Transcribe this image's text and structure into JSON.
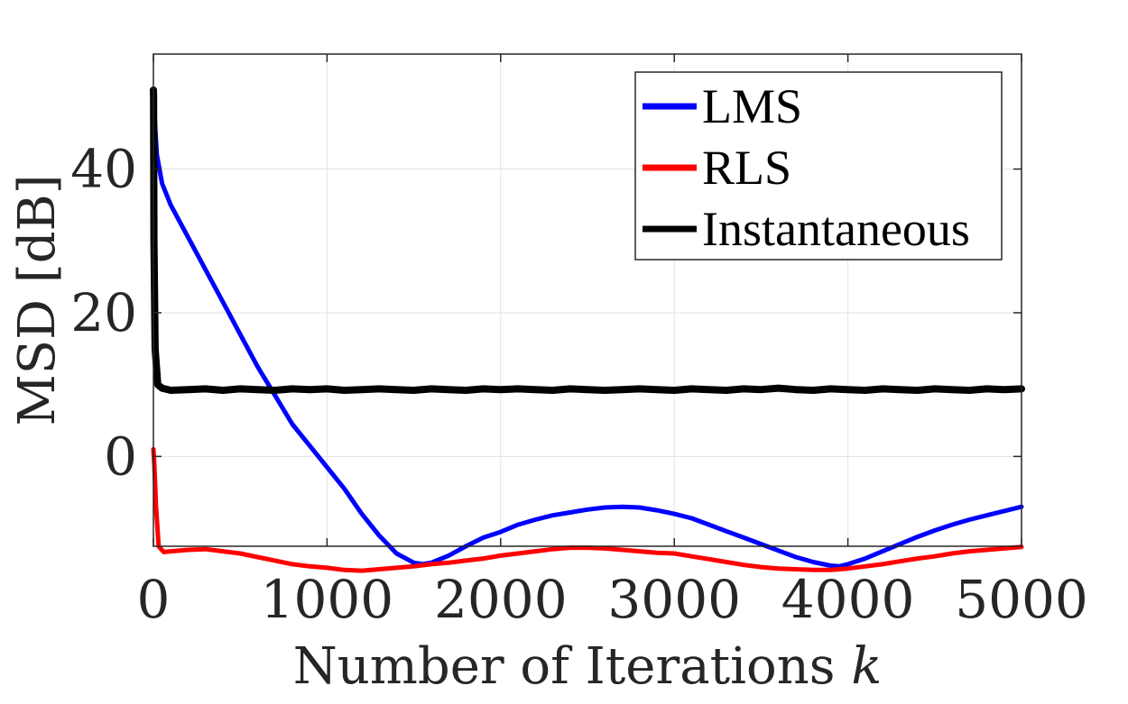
{
  "chart_data": {
    "type": "line",
    "title": "",
    "xlabel": "Number of Iterations",
    "xlabel_var": "k",
    "ylabel": "MSD [dB]",
    "xlim": [
      0,
      5000
    ],
    "ylim": [
      -12.5,
      56
    ],
    "xticks": [
      0,
      1000,
      2000,
      3000,
      4000,
      5000
    ],
    "yticks": [
      0,
      20,
      40
    ],
    "grid": true,
    "legend_position": "top-right",
    "series": [
      {
        "name": "LMS",
        "color": "#0000ff",
        "x": [
          0,
          20,
          50,
          100,
          200,
          300,
          400,
          500,
          600,
          700,
          800,
          900,
          1000,
          1100,
          1200,
          1300,
          1400,
          1500,
          1550,
          1600,
          1700,
          1800,
          1900,
          2000,
          2100,
          2200,
          2300,
          2400,
          2500,
          2600,
          2700,
          2800,
          2900,
          3000,
          3100,
          3200,
          3300,
          3400,
          3500,
          3600,
          3700,
          3800,
          3900,
          3950,
          4000,
          4100,
          4200,
          4300,
          4400,
          4500,
          4600,
          4700,
          4800,
          4900,
          5000
        ],
        "y": [
          50,
          42,
          38,
          35,
          30.5,
          26,
          21.5,
          17,
          12.5,
          8.5,
          4.5,
          1.5,
          -1.5,
          -4.5,
          -8,
          -11,
          -13.5,
          -14.8,
          -15,
          -14.8,
          -13.8,
          -12.5,
          -11.3,
          -10.5,
          -9.5,
          -8.8,
          -8.2,
          -7.8,
          -7.4,
          -7.1,
          -7,
          -7.1,
          -7.5,
          -8,
          -8.6,
          -9.5,
          -10.4,
          -11.3,
          -12.2,
          -13.1,
          -14,
          -14.7,
          -15.2,
          -15.3,
          -15,
          -14.2,
          -13.2,
          -12.2,
          -11.2,
          -10.3,
          -9.5,
          -8.8,
          -8.2,
          -7.6,
          -7
        ]
      },
      {
        "name": "RLS",
        "color": "#ff0000",
        "x": [
          0,
          5,
          15,
          30,
          60,
          100,
          200,
          300,
          400,
          500,
          600,
          700,
          800,
          900,
          1000,
          1100,
          1200,
          1300,
          1400,
          1500,
          1600,
          1700,
          1800,
          1900,
          2000,
          2100,
          2200,
          2300,
          2400,
          2500,
          2600,
          2700,
          2800,
          2900,
          3000,
          3100,
          3200,
          3300,
          3400,
          3500,
          3600,
          3700,
          3800,
          3900,
          4000,
          4100,
          4200,
          4300,
          4400,
          4500,
          4600,
          4700,
          4800,
          4900,
          5000
        ],
        "y": [
          1,
          -1,
          -7,
          -12.5,
          -13.3,
          -13.2,
          -13,
          -12.9,
          -13.2,
          -13.5,
          -14,
          -14.5,
          -15,
          -15.3,
          -15.5,
          -15.8,
          -15.9,
          -15.7,
          -15.5,
          -15.3,
          -15,
          -14.8,
          -14.5,
          -14.2,
          -13.8,
          -13.5,
          -13.2,
          -12.9,
          -12.7,
          -12.7,
          -12.8,
          -13,
          -13.2,
          -13.4,
          -13.5,
          -13.9,
          -14.3,
          -14.7,
          -15.1,
          -15.4,
          -15.6,
          -15.7,
          -15.8,
          -15.8,
          -15.6,
          -15.3,
          -15,
          -14.6,
          -14.2,
          -13.9,
          -13.5,
          -13.2,
          -13,
          -12.8,
          -12.6
        ]
      },
      {
        "name": "Instantaneous",
        "color": "#000000",
        "x": [
          0,
          1,
          3,
          10,
          25,
          50,
          100,
          200,
          300,
          400,
          500,
          600,
          700,
          800,
          900,
          1000,
          1100,
          1200,
          1300,
          1400,
          1500,
          1600,
          1700,
          1800,
          1900,
          2000,
          2100,
          2200,
          2300,
          2400,
          2500,
          2600,
          2700,
          2800,
          2900,
          3000,
          3100,
          3200,
          3300,
          3400,
          3500,
          3600,
          3700,
          3800,
          3900,
          4000,
          4100,
          4200,
          4300,
          4400,
          4500,
          4600,
          4700,
          4800,
          4900,
          5000
        ],
        "y": [
          51,
          50,
          30,
          15,
          10,
          9.5,
          9.2,
          9.3,
          9.4,
          9.2,
          9.4,
          9.3,
          9.2,
          9.4,
          9.3,
          9.4,
          9.2,
          9.3,
          9.4,
          9.3,
          9.2,
          9.4,
          9.3,
          9.2,
          9.4,
          9.3,
          9.4,
          9.3,
          9.2,
          9.4,
          9.3,
          9.2,
          9.3,
          9.4,
          9.3,
          9.2,
          9.4,
          9.3,
          9.2,
          9.4,
          9.3,
          9.5,
          9.3,
          9.2,
          9.4,
          9.3,
          9.2,
          9.4,
          9.3,
          9.2,
          9.4,
          9.3,
          9.2,
          9.4,
          9.3,
          9.4
        ]
      }
    ]
  }
}
